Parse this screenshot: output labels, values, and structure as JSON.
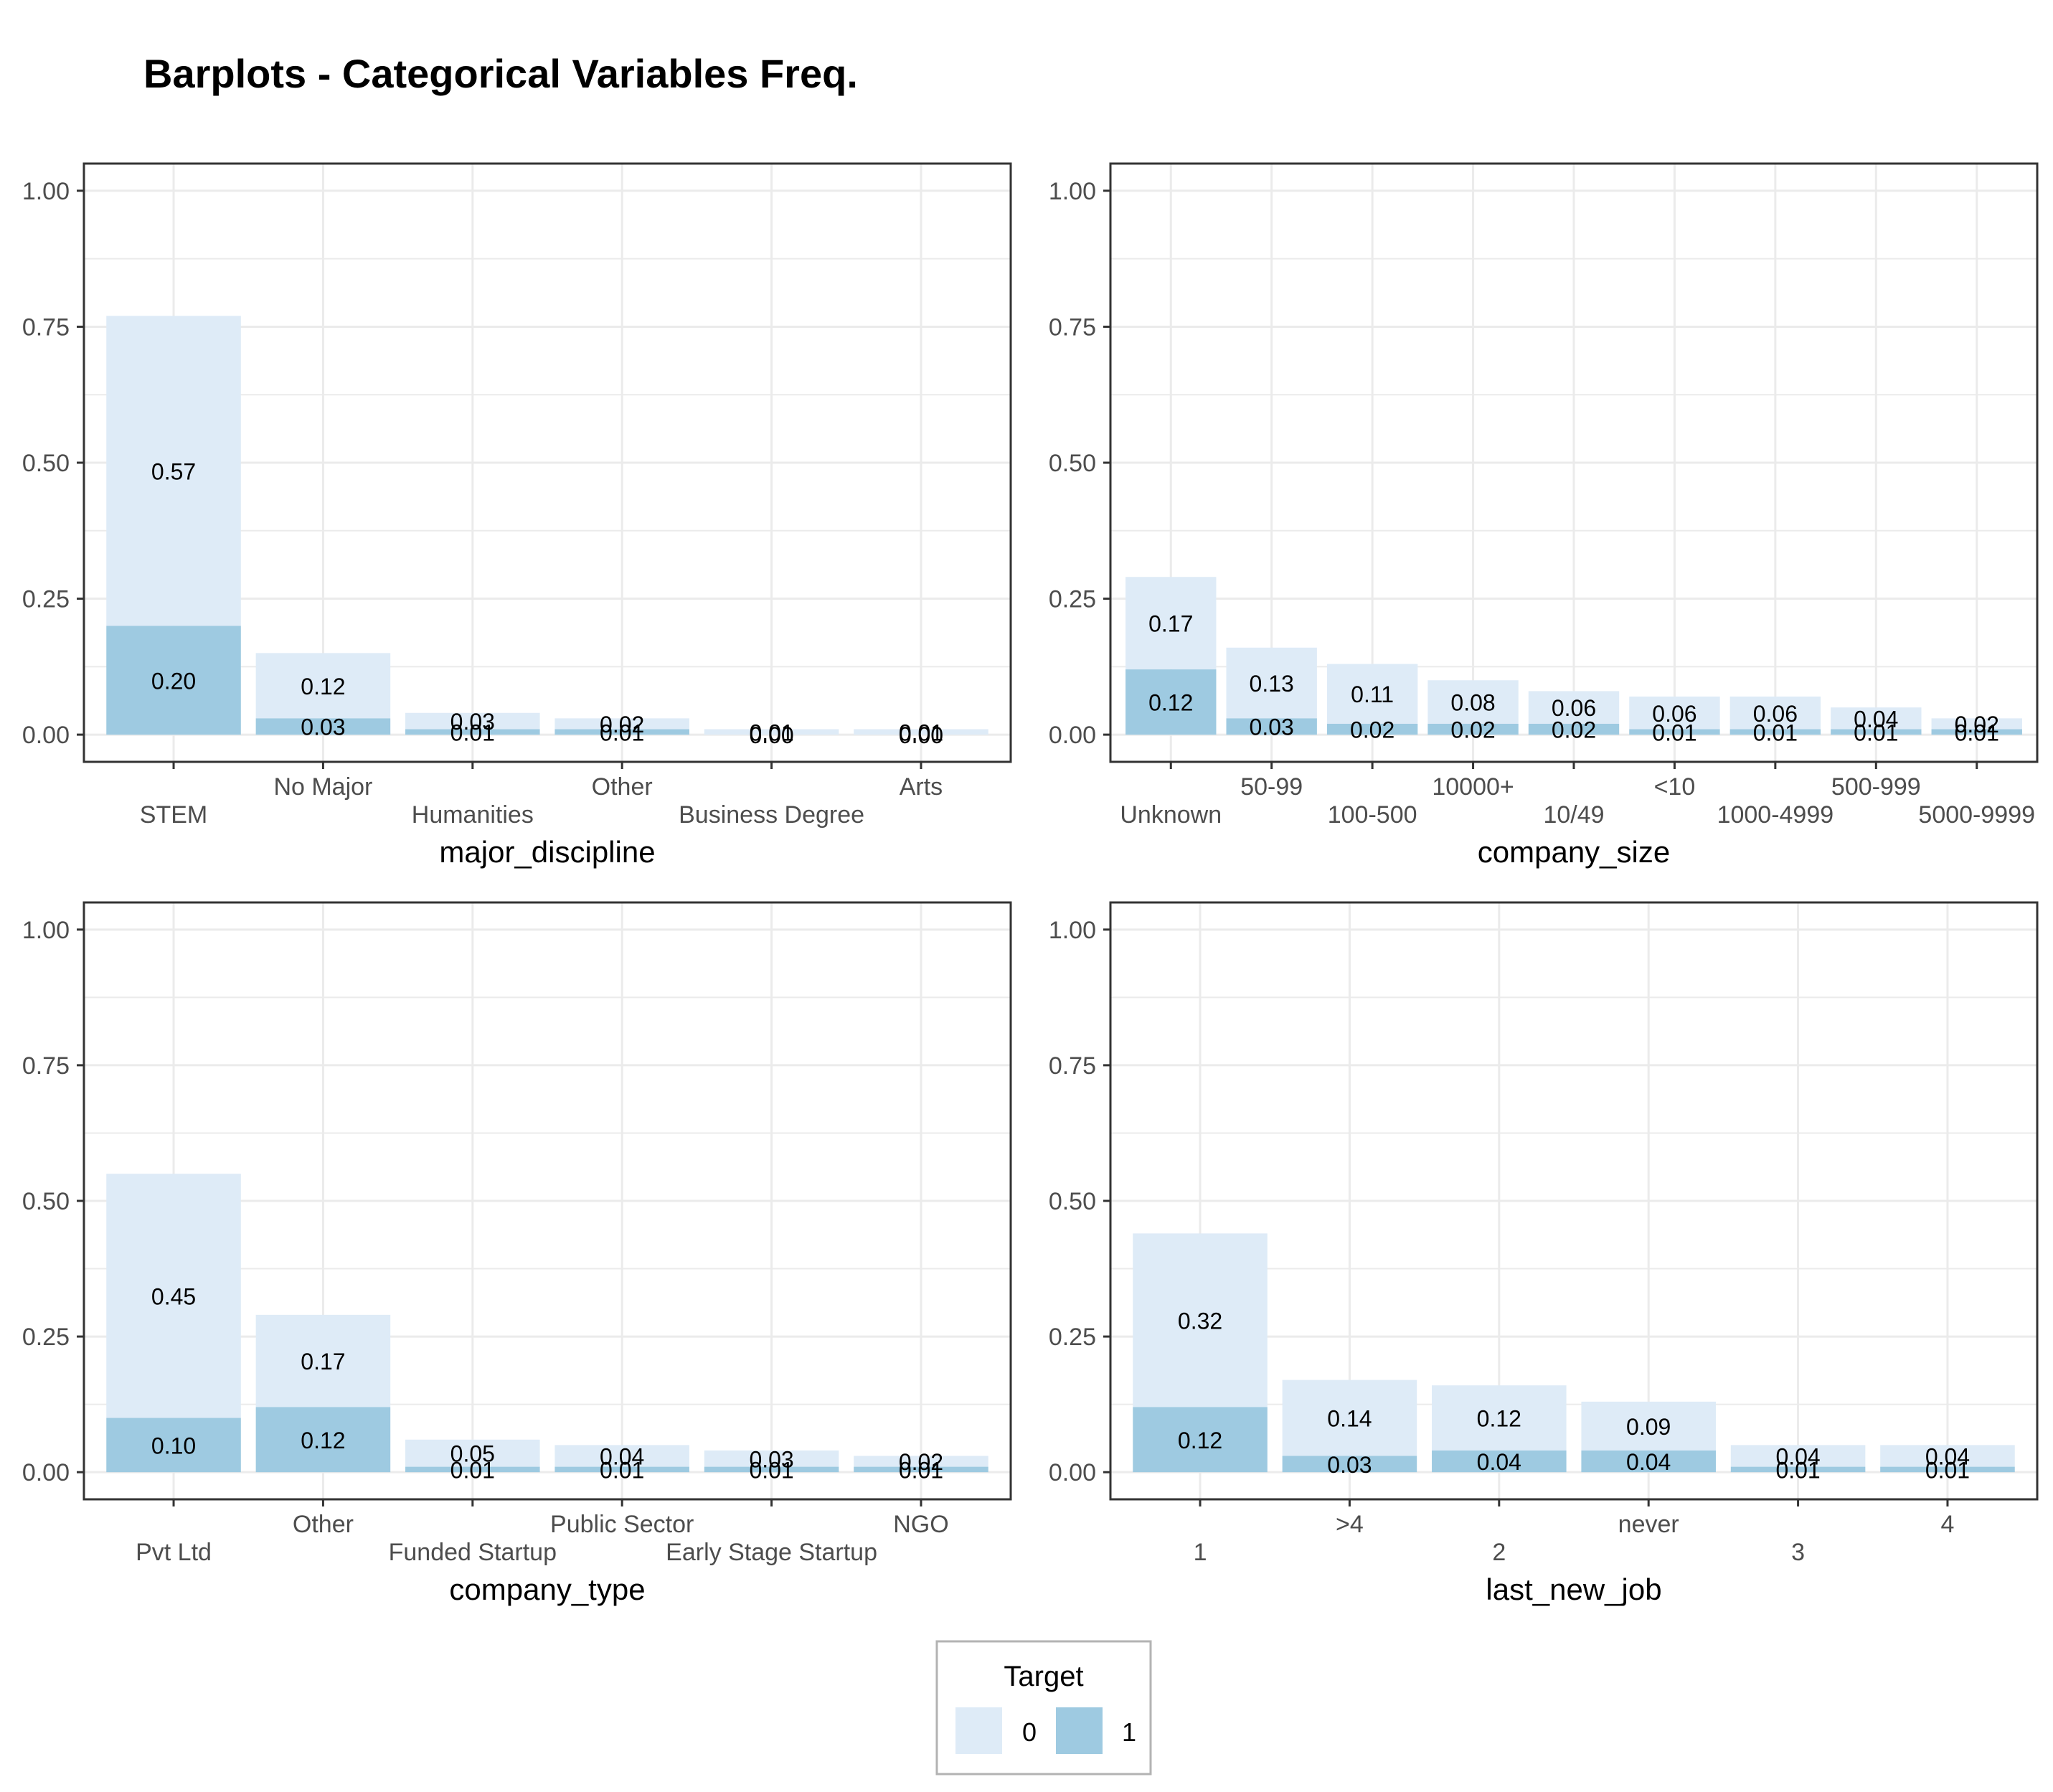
{
  "title": "Barplots - Categorical Variables Freq.",
  "colors": {
    "target0": "#deebf7",
    "target1": "#9ecae1",
    "panel_border": "#333333",
    "grid": "#ebebeb",
    "axis_text": "#4d4d4d"
  },
  "legend": {
    "title": "Target",
    "placement": "bottom",
    "items": [
      {
        "label": "0",
        "color": "#deebf7"
      },
      {
        "label": "1",
        "color": "#9ecae1"
      }
    ]
  },
  "chart_data": [
    {
      "type": "bar",
      "stacked": true,
      "xlabel": "major_discipline",
      "ylim": [
        0,
        1
      ],
      "yticks": [
        "0.00",
        "0.25",
        "0.50",
        "0.75",
        "1.00"
      ],
      "categories": [
        "STEM",
        "No Major",
        "Humanities",
        "Other",
        "Business Degree",
        "Arts"
      ],
      "series": [
        {
          "name": "0",
          "values": [
            0.57,
            0.12,
            0.03,
            0.02,
            0.01,
            0.01
          ]
        },
        {
          "name": "1",
          "values": [
            0.2,
            0.03,
            0.01,
            0.01,
            0.0,
            0.0
          ]
        }
      ],
      "labels0": [
        "0.57",
        "0.12",
        "0.03",
        "0.02",
        "0.01",
        "0.01"
      ],
      "labels1": [
        "0.20",
        "0.03",
        "0.01",
        "0.01",
        "0.00",
        "0.00"
      ]
    },
    {
      "type": "bar",
      "stacked": true,
      "xlabel": "company_size",
      "ylim": [
        0,
        1
      ],
      "yticks": [
        "0.00",
        "0.25",
        "0.50",
        "0.75",
        "1.00"
      ],
      "categories": [
        "Unknown",
        "50-99",
        "100-500",
        "10000+",
        "10/49",
        "<10",
        "1000-4999",
        "500-999",
        "5000-9999"
      ],
      "series": [
        {
          "name": "0",
          "values": [
            0.17,
            0.13,
            0.11,
            0.08,
            0.06,
            0.06,
            0.06,
            0.04,
            0.02
          ]
        },
        {
          "name": "1",
          "values": [
            0.12,
            0.03,
            0.02,
            0.02,
            0.02,
            0.01,
            0.01,
            0.01,
            0.01
          ]
        }
      ],
      "labels0": [
        "0.17",
        "0.13",
        "0.11",
        "0.08",
        "0.06",
        "0.06",
        "0.06",
        "0.04",
        "0.02"
      ],
      "labels1": [
        "0.12",
        "0.03",
        "0.02",
        "0.02",
        "0.02",
        "0.01",
        "0.01",
        "0.01",
        "0.01"
      ]
    },
    {
      "type": "bar",
      "stacked": true,
      "xlabel": "company_type",
      "ylim": [
        0,
        1
      ],
      "yticks": [
        "0.00",
        "0.25",
        "0.50",
        "0.75",
        "1.00"
      ],
      "categories": [
        "Pvt Ltd",
        "Other",
        "Funded Startup",
        "Public Sector",
        "Early Stage Startup",
        "NGO"
      ],
      "series": [
        {
          "name": "0",
          "values": [
            0.45,
            0.17,
            0.05,
            0.04,
            0.03,
            0.02
          ]
        },
        {
          "name": "1",
          "values": [
            0.1,
            0.12,
            0.01,
            0.01,
            0.01,
            0.01
          ]
        }
      ],
      "labels0": [
        "0.45",
        "0.17",
        "0.05",
        "0.04",
        "0.03",
        "0.02"
      ],
      "labels1": [
        "0.10",
        "0.12",
        "0.01",
        "0.01",
        "0.01",
        "0.01"
      ]
    },
    {
      "type": "bar",
      "stacked": true,
      "xlabel": "last_new_job",
      "ylim": [
        0,
        1
      ],
      "yticks": [
        "0.00",
        "0.25",
        "0.50",
        "0.75",
        "1.00"
      ],
      "categories": [
        "1",
        ">4",
        "2",
        "never",
        "3",
        "4"
      ],
      "series": [
        {
          "name": "0",
          "values": [
            0.32,
            0.14,
            0.12,
            0.09,
            0.04,
            0.04
          ]
        },
        {
          "name": "1",
          "values": [
            0.12,
            0.03,
            0.04,
            0.04,
            0.01,
            0.01
          ]
        }
      ],
      "labels0": [
        "0.32",
        "0.14",
        "0.12",
        "0.09",
        "0.04",
        "0.04"
      ],
      "labels1": [
        "0.12",
        "0.03",
        "0.04",
        "0.04",
        "0.01",
        "0.01"
      ]
    }
  ]
}
